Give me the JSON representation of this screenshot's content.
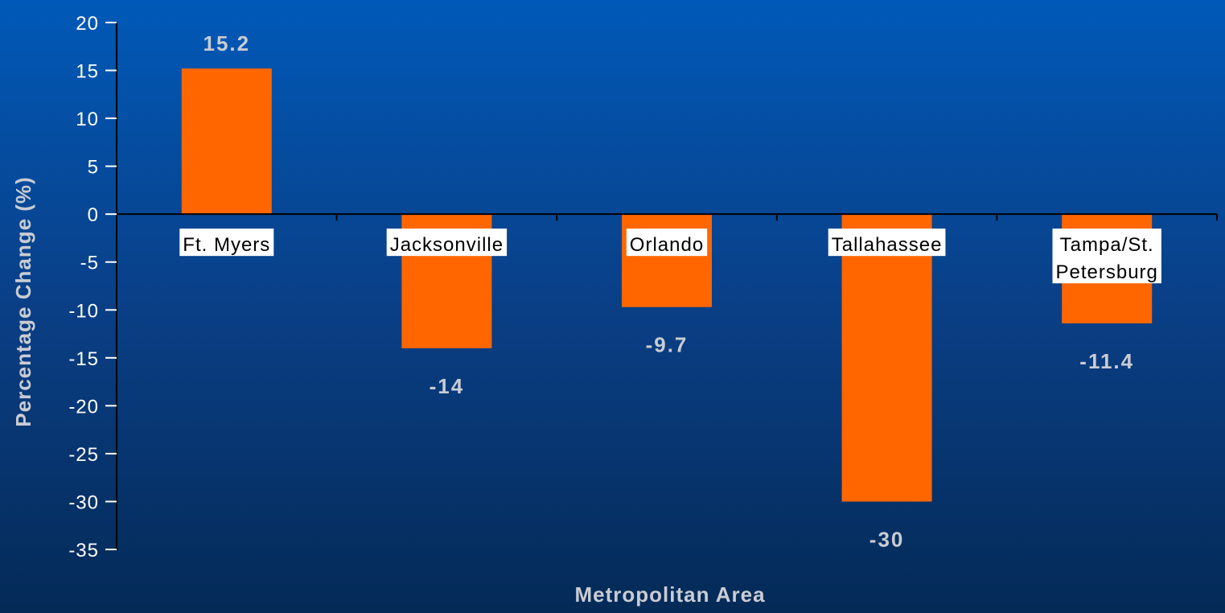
{
  "chart_data": {
    "type": "bar",
    "categories": [
      [
        "Ft. Myers"
      ],
      [
        "Jacksonville"
      ],
      [
        "Orlando"
      ],
      [
        "Tallahassee"
      ],
      [
        "Tampa/St.",
        "Petersburg"
      ]
    ],
    "values": [
      15.2,
      -14,
      -9.7,
      -30,
      -11.4
    ],
    "data_labels": [
      "15.2",
      "-14",
      "-9.7",
      "-30",
      "-11.4"
    ],
    "xlabel": "Metropolitan Area",
    "ylabel": "Percentage Change (%)",
    "ylim": [
      -35,
      20
    ],
    "yticks": [
      20,
      15,
      10,
      5,
      0,
      -5,
      -10,
      -15,
      -20,
      -25,
      -30,
      -35
    ],
    "grid": false,
    "legend": "none",
    "bar_color": "#ff6600",
    "label_box_color": "#ffffff"
  }
}
